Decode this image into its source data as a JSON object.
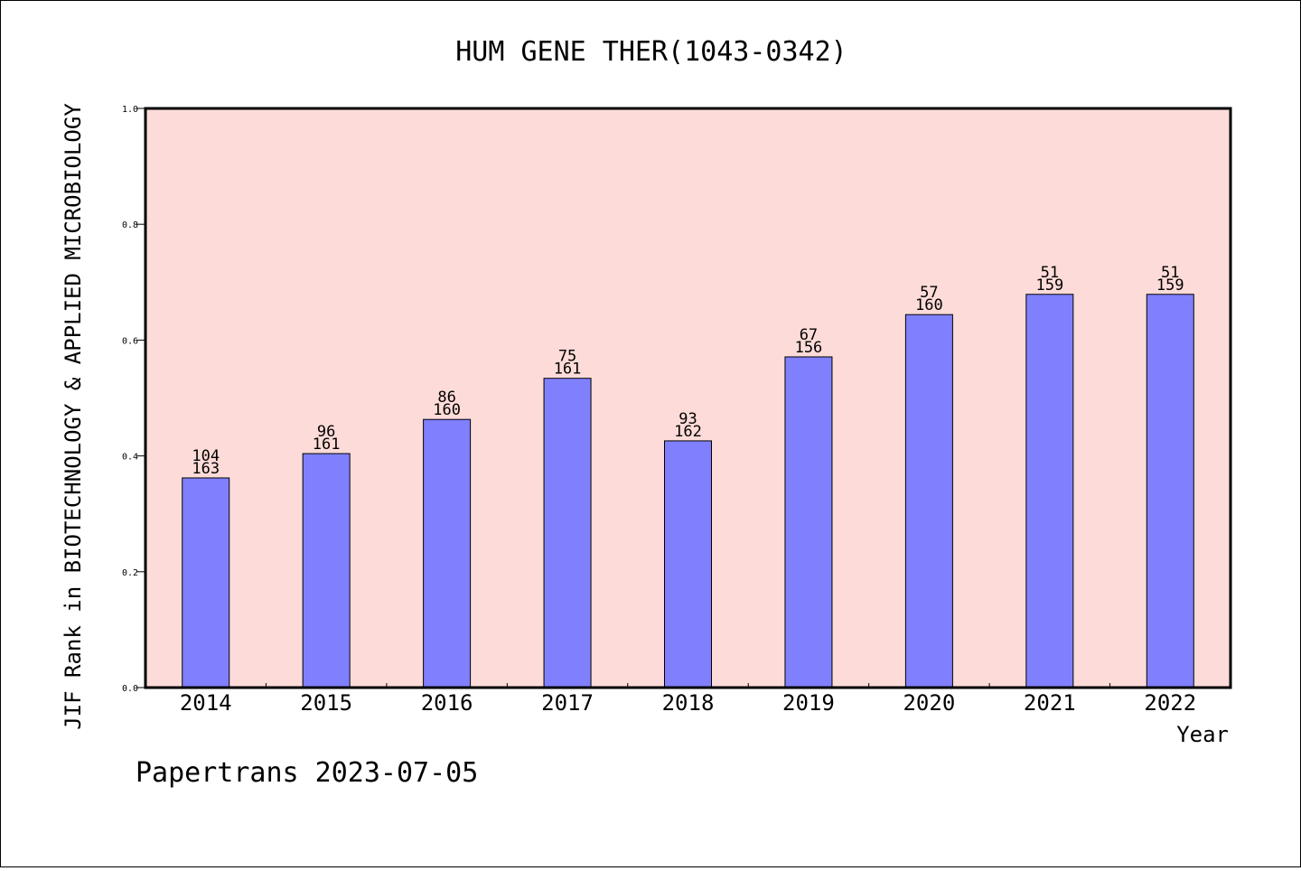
{
  "chart_data": {
    "type": "bar",
    "title": "HUM GENE THER(1043-0342)",
    "xlabel": "Year",
    "ylabel": "JIF Rank in BIOTECHNOLOGY & APPLIED MICROBIOLOGY",
    "ylim": [
      0,
      1
    ],
    "yticks": [
      "0.0",
      "0.2",
      "0.4",
      "0.6",
      "0.8",
      "1.0"
    ],
    "categories": [
      "2014",
      "2015",
      "2016",
      "2017",
      "2018",
      "2019",
      "2020",
      "2021",
      "2022"
    ],
    "series": [
      {
        "values": [
          0.362,
          0.404,
          0.463,
          0.534,
          0.426,
          0.571,
          0.644,
          0.679,
          0.679
        ]
      }
    ],
    "ranks": [
      "104",
      "96",
      "86",
      "75",
      "93",
      "67",
      "57",
      "51",
      "51"
    ],
    "totals": [
      "163",
      "161",
      "160",
      "161",
      "162",
      "156",
      "160",
      "159",
      "159"
    ],
    "grid": false,
    "colors": {
      "bar": "#8080ff",
      "plot_background": "#fddbd8",
      "frame": "#000000"
    }
  },
  "footer": "Papertrans 2023-07-05"
}
